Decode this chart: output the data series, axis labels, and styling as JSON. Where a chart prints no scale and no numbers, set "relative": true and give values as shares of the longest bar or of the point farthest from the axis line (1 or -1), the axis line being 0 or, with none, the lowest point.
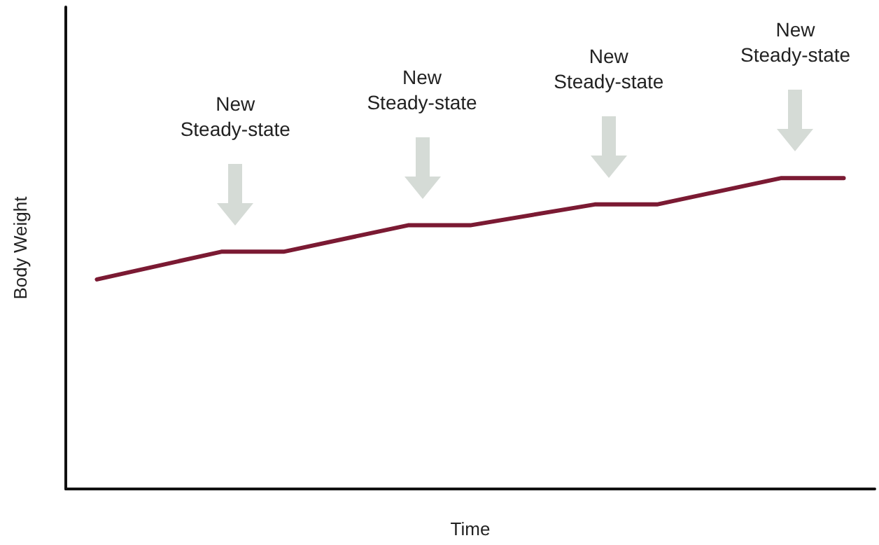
{
  "chart_data": {
    "type": "line",
    "relative": true,
    "xlabel": "Time",
    "ylabel": "Body Weight",
    "categories": [
      null,
      null,
      null,
      null,
      null,
      null,
      null,
      null,
      null,
      null,
      null,
      null,
      null
    ],
    "series": [
      {
        "color": "#7b1a33",
        "values": [
          0.674,
          null,
          0.763,
          0.763,
          null,
          0.848,
          0.848,
          null,
          0.915,
          0.915,
          null,
          1,
          1
        ]
      }
    ],
    "annotations": [
      "New\nSteady-state",
      "New\nSteady-state",
      "New\nSteady-state",
      "New\nSteady-state"
    ],
    "marker": "none",
    "line_style": "solid"
  }
}
